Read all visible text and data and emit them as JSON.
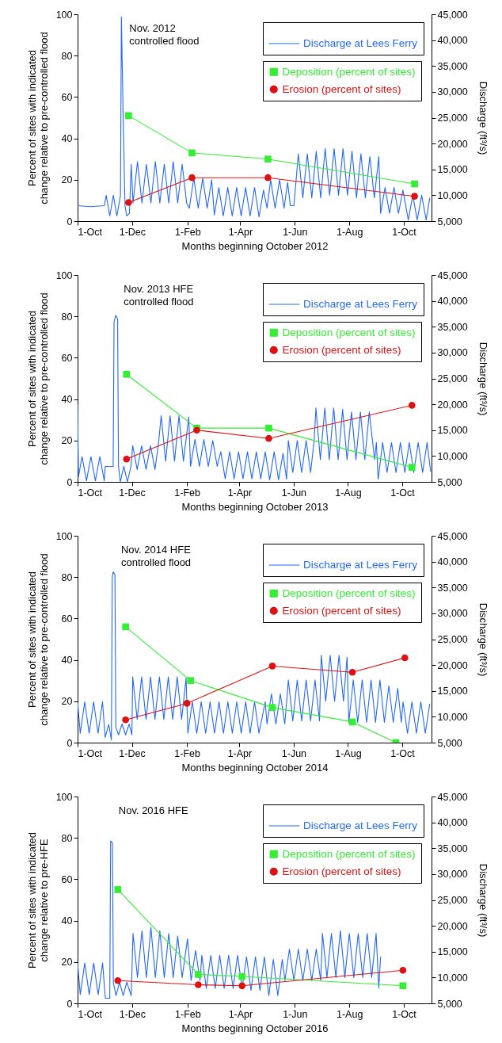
{
  "chart_data": [
    {
      "type": "line",
      "xlabel": "Months beginning October 2012",
      "ylabel": "Percent of sites with indicated\nchange relative to pre-controlled flood",
      "y2label": "Discharge (ft³/s)",
      "legend": "top right",
      "xlim": [
        "2012-10-01",
        "2013-11-01"
      ],
      "xticks": [
        {
          "value": "2012-10-01",
          "label": "1-Oct"
        },
        {
          "value": "2012-12-01",
          "label": "1-Dec"
        },
        {
          "value": "2013-02-01",
          "label": "1-Feb"
        },
        {
          "value": "2013-04-01",
          "label": "1-Apr"
        },
        {
          "value": "2013-06-01",
          "label": "1-Jun"
        },
        {
          "value": "2013-08-01",
          "label": "1-Aug"
        },
        {
          "value": "2013-10-01",
          "label": "1-Oct"
        }
      ],
      "ylim": [
        0,
        100
      ],
      "yticks": [
        0,
        20,
        40,
        60,
        80,
        100
      ],
      "y2lim": [
        5000,
        45000
      ],
      "y2ticks": [
        {
          "value": 5000,
          "label": "5,000"
        },
        {
          "value": 10000,
          "label": "10,000"
        },
        {
          "value": 15000,
          "label": "15,000"
        },
        {
          "value": 20000,
          "label": "20,000"
        },
        {
          "value": 25000,
          "label": "25,000"
        },
        {
          "value": 30000,
          "label": "30,000"
        },
        {
          "value": 35000,
          "label": "35,000"
        },
        {
          "value": 40000,
          "label": "40,000"
        },
        {
          "value": 45000,
          "label": "45,000"
        }
      ],
      "annotations": [
        "Nov. 2012\ncontrolled flood"
      ],
      "line_style": "solid",
      "series": [
        {
          "name": "Discharge at Lees Ferry",
          "type": "line",
          "axis": "y2",
          "color": "#2469f5",
          "x": [
            "2012-10-01",
            "2012-10-15",
            "2012-10-31",
            "2012-11-02",
            "2012-11-06",
            "2012-11-10",
            "2012-11-14",
            "2012-11-18",
            "2012-11-19",
            "2012-11-21",
            "2012-11-23",
            "2012-11-25",
            "2012-11-28",
            "2012-11-30",
            "2012-12-02",
            "2012-12-07",
            "2012-12-12",
            "2012-12-17",
            "2012-12-22",
            "2012-12-27",
            "2013-01-01",
            "2013-01-06",
            "2013-01-11",
            "2013-01-16",
            "2013-01-21",
            "2013-01-26",
            "2013-01-31",
            "2013-02-03",
            "2013-02-08",
            "2013-02-13",
            "2013-02-18",
            "2013-02-23",
            "2013-02-28",
            "2013-03-03",
            "2013-03-08",
            "2013-03-13",
            "2013-03-18",
            "2013-03-23",
            "2013-03-28",
            "2013-04-02",
            "2013-04-07",
            "2013-04-12",
            "2013-04-17",
            "2013-04-22",
            "2013-04-27",
            "2013-05-01",
            "2013-05-05",
            "2013-05-10",
            "2013-05-15",
            "2013-05-20",
            "2013-05-24",
            "2013-05-27",
            "2013-05-31",
            "2013-06-05",
            "2013-06-10",
            "2013-06-15",
            "2013-06-20",
            "2013-06-25",
            "2013-06-30",
            "2013-07-05",
            "2013-07-10",
            "2013-07-15",
            "2013-07-20",
            "2013-07-25",
            "2013-07-30",
            "2013-08-04",
            "2013-08-09",
            "2013-08-14",
            "2013-08-19",
            "2013-08-24",
            "2013-08-29",
            "2013-09-03",
            "2013-09-05",
            "2013-09-10",
            "2013-09-15",
            "2013-09-20",
            "2013-09-25",
            "2013-09-30",
            "2013-10-06",
            "2013-10-11",
            "2013-10-16",
            "2013-10-21",
            "2013-10-26",
            "2013-10-30"
          ],
          "values": [
            8000,
            7800,
            8000,
            10000,
            6000,
            10000,
            6000,
            10000,
            44500,
            25000,
            8000,
            6000,
            6500,
            16000,
            8500,
            16500,
            8500,
            16000,
            8500,
            16500,
            8500,
            16000,
            8500,
            16500,
            8500,
            16000,
            8500,
            7500,
            13300,
            7500,
            13300,
            7500,
            13000,
            6200,
            11500,
            6000,
            11500,
            6000,
            11500,
            6000,
            11500,
            6000,
            11500,
            5800,
            11000,
            7500,
            13000,
            7500,
            13000,
            7500,
            12500,
            8000,
            8000,
            18000,
            9500,
            18000,
            9500,
            18500,
            9500,
            19000,
            10000,
            19000,
            10000,
            19000,
            10000,
            18500,
            9500,
            18000,
            9500,
            17500,
            9500,
            17500,
            6500,
            11500,
            6500,
            11500,
            6500,
            11000,
            5200,
            10000,
            5200,
            10000,
            5200,
            9500
          ]
        },
        {
          "name": "Deposition (percent of sites)",
          "type": "line",
          "marker": "square",
          "color": "#33ee33",
          "x": [
            "2012-11-27",
            "2013-02-06",
            "2013-05-02",
            "2013-10-13"
          ],
          "values": [
            51,
            33,
            30,
            18
          ]
        },
        {
          "name": "Erosion (percent of sites)",
          "type": "line",
          "marker": "circle",
          "color": "#dd1111",
          "x": [
            "2012-11-27",
            "2013-02-06",
            "2013-05-02",
            "2013-10-13"
          ],
          "values": [
            9,
            21,
            21,
            12
          ]
        }
      ]
    },
    {
      "type": "line",
      "xlabel": "Months beginning October 2013",
      "ylabel": "Percent of sites with indicated\nchange relative to pre-controlled flood",
      "y2label": "Discharge (ft³/s)",
      "legend": "top right",
      "xlim": [
        "2013-10-01",
        "2014-11-03"
      ],
      "xticks": [
        {
          "value": "2013-10-01",
          "label": "1-Oct"
        },
        {
          "value": "2013-12-01",
          "label": "1-Dec"
        },
        {
          "value": "2014-02-01",
          "label": "1-Feb"
        },
        {
          "value": "2014-04-01",
          "label": "1-Apr"
        },
        {
          "value": "2014-06-01",
          "label": "1-Jun"
        },
        {
          "value": "2014-08-01",
          "label": "1-Aug"
        },
        {
          "value": "2014-10-01",
          "label": "1-Oct"
        }
      ],
      "ylim": [
        0,
        100
      ],
      "yticks": [
        0,
        20,
        40,
        60,
        80,
        100
      ],
      "y2lim": [
        5000,
        45000
      ],
      "y2ticks": [
        {
          "value": 5000,
          "label": "5,000"
        },
        {
          "value": 10000,
          "label": "10,000"
        },
        {
          "value": 15000,
          "label": "15,000"
        },
        {
          "value": 20000,
          "label": "20,000"
        },
        {
          "value": 25000,
          "label": "25,000"
        },
        {
          "value": 30000,
          "label": "30,000"
        },
        {
          "value": 35000,
          "label": "35,000"
        },
        {
          "value": 40000,
          "label": "40,000"
        },
        {
          "value": 45000,
          "label": "45,000"
        }
      ],
      "annotations": [
        "Nov. 2013 HFE\ncontrolled flood"
      ],
      "line_style": "solid",
      "series": [
        {
          "name": "Discharge at Lees Ferry",
          "type": "line",
          "axis": "y2",
          "color": "#2469f5",
          "x": [
            "2013-10-01",
            "2013-10-02",
            "2013-10-06",
            "2013-10-11",
            "2013-10-16",
            "2013-10-21",
            "2013-10-26",
            "2013-10-31",
            "2013-11-01",
            "2013-11-10",
            "2013-11-11",
            "2013-11-13",
            "2013-11-15",
            "2013-11-16",
            "2013-11-18",
            "2013-11-22",
            "2013-11-26",
            "2013-11-30",
            "2013-12-02",
            "2013-12-07",
            "2013-12-12",
            "2013-12-17",
            "2013-12-22",
            "2013-12-27",
            "2013-12-31",
            "2014-01-03",
            "2014-01-08",
            "2014-01-13",
            "2014-01-18",
            "2014-01-23",
            "2014-01-28",
            "2014-02-03",
            "2014-02-05",
            "2014-02-10",
            "2014-02-15",
            "2014-02-20",
            "2014-02-25",
            "2014-03-02",
            "2014-03-07",
            "2014-03-11",
            "2014-03-16",
            "2014-03-21",
            "2014-03-26",
            "2014-03-31",
            "2014-04-05",
            "2014-04-10",
            "2014-04-15",
            "2014-04-20",
            "2014-04-25",
            "2014-04-30",
            "2014-05-05",
            "2014-05-10",
            "2014-05-15",
            "2014-05-20",
            "2014-05-24",
            "2014-05-26",
            "2014-05-31",
            "2014-06-05",
            "2014-06-10",
            "2014-06-15",
            "2014-06-20",
            "2014-06-24",
            "2014-06-26",
            "2014-07-01",
            "2014-07-06",
            "2014-07-11",
            "2014-07-16",
            "2014-07-21",
            "2014-07-26",
            "2014-07-31",
            "2014-08-05",
            "2014-08-10",
            "2014-08-15",
            "2014-08-20",
            "2014-08-25",
            "2014-08-31",
            "2014-09-02",
            "2014-09-04",
            "2014-09-09",
            "2014-09-14",
            "2014-09-19",
            "2014-09-24",
            "2014-09-29",
            "2014-10-04",
            "2014-10-09",
            "2014-10-14",
            "2014-10-19",
            "2014-10-24",
            "2014-10-29",
            "2014-11-02"
          ],
          "values": [
            20000,
            6000,
            9900,
            5200,
            9900,
            5200,
            9900,
            5200,
            8000,
            8000,
            36000,
            37200,
            36500,
            8000,
            5000,
            8000,
            5000,
            8000,
            12000,
            7400,
            12000,
            7400,
            12000,
            7400,
            12500,
            17800,
            9000,
            17800,
            9000,
            17800,
            9000,
            17500,
            8000,
            13200,
            8000,
            13200,
            8000,
            13000,
            8000,
            10800,
            5600,
            10800,
            5600,
            10800,
            5600,
            10800,
            5600,
            10800,
            5600,
            10800,
            5400,
            10800,
            5400,
            10500,
            5500,
            13000,
            6800,
            13000,
            6800,
            13000,
            6800,
            13000,
            19300,
            9300,
            19300,
            9300,
            19300,
            9300,
            19000,
            9300,
            18500,
            9300,
            18500,
            9300,
            18500,
            9300,
            12600,
            5500,
            12600,
            6800,
            12600,
            6800,
            12600,
            6800,
            12600,
            6800,
            12600,
            6800,
            12600,
            7000
          ]
        },
        {
          "name": "Deposition (percent of sites)",
          "type": "line",
          "marker": "square",
          "color": "#33ee33",
          "x": [
            "2013-11-25",
            "2014-02-12",
            "2014-05-04",
            "2014-10-12"
          ],
          "values": [
            52,
            26,
            26,
            7
          ]
        },
        {
          "name": "Erosion (percent of sites)",
          "type": "line",
          "marker": "circle",
          "color": "#dd1111",
          "x": [
            "2013-11-25",
            "2014-02-12",
            "2014-05-04",
            "2014-10-12"
          ],
          "values": [
            11,
            25,
            21,
            37
          ]
        }
      ]
    },
    {
      "type": "line",
      "xlabel": "Months beginning October 2014",
      "ylabel": "Percent of sites with indicated\nchange relative to pre-controlled flood",
      "y2label": "Discharge (ft³/s)",
      "legend": "top right",
      "xlim": [
        "2014-10-01",
        "2015-11-03"
      ],
      "xticks": [
        {
          "value": "2014-10-01",
          "label": "1-Oct"
        },
        {
          "value": "2014-12-01",
          "label": "1-Dec"
        },
        {
          "value": "2015-02-01",
          "label": "1-Feb"
        },
        {
          "value": "2015-04-01",
          "label": "1-Apr"
        },
        {
          "value": "2015-06-01",
          "label": "1-Jun"
        },
        {
          "value": "2015-08-01",
          "label": "1-Aug"
        },
        {
          "value": "2015-10-01",
          "label": "1-Oct"
        }
      ],
      "ylim": [
        0,
        100
      ],
      "yticks": [
        0,
        20,
        40,
        60,
        80,
        100
      ],
      "y2lim": [
        5000,
        45000
      ],
      "y2ticks": [
        {
          "value": 5000,
          "label": "5,000"
        },
        {
          "value": 10000,
          "label": "10,000"
        },
        {
          "value": 15000,
          "label": "15,000"
        },
        {
          "value": 20000,
          "label": "20,000"
        },
        {
          "value": 25000,
          "label": "25,000"
        },
        {
          "value": 30000,
          "label": "30,000"
        },
        {
          "value": 35000,
          "label": "35,000"
        },
        {
          "value": 40000,
          "label": "40,000"
        },
        {
          "value": 45000,
          "label": "45,000"
        }
      ],
      "annotations": [
        "Nov. 2014 HFE\ncontrolled flood"
      ],
      "line_style": "solid",
      "series": [
        {
          "name": "Discharge at Lees Ferry",
          "type": "line",
          "axis": "y2",
          "color": "#2469f5",
          "x": [
            "2014-10-01",
            "2014-10-04",
            "2014-10-09",
            "2014-10-14",
            "2014-10-19",
            "2014-10-24",
            "2014-10-29",
            "2014-11-01",
            "2014-11-05",
            "2014-11-08",
            "2014-11-09",
            "2014-11-10",
            "2014-11-12",
            "2014-11-13",
            "2014-11-16",
            "2014-11-20",
            "2014-11-24",
            "2014-11-28",
            "2014-12-01",
            "2014-12-02",
            "2014-12-07",
            "2014-12-12",
            "2014-12-17",
            "2014-12-22",
            "2014-12-27",
            "2015-01-01",
            "2015-01-06",
            "2015-01-11",
            "2015-01-16",
            "2015-01-21",
            "2015-01-26",
            "2015-01-31",
            "2015-02-02",
            "2015-02-07",
            "2015-02-12",
            "2015-02-17",
            "2015-02-22",
            "2015-02-27",
            "2015-03-04",
            "2015-03-09",
            "2015-03-14",
            "2015-03-19",
            "2015-03-24",
            "2015-03-29",
            "2015-04-03",
            "2015-04-08",
            "2015-04-13",
            "2015-04-18",
            "2015-04-23",
            "2015-04-30",
            "2015-05-02",
            "2015-05-07",
            "2015-05-12",
            "2015-05-17",
            "2015-05-22",
            "2015-05-26",
            "2015-05-31",
            "2015-06-05",
            "2015-06-10",
            "2015-06-15",
            "2015-06-20",
            "2015-06-25",
            "2015-06-30",
            "2015-07-02",
            "2015-07-07",
            "2015-07-12",
            "2015-07-17",
            "2015-07-22",
            "2015-07-27",
            "2015-07-31",
            "2015-08-02",
            "2015-08-07",
            "2015-08-12",
            "2015-08-17",
            "2015-08-22",
            "2015-08-27",
            "2015-09-01",
            "2015-09-06",
            "2015-09-11",
            "2015-09-16",
            "2015-09-21",
            "2015-09-26",
            "2015-09-30",
            "2015-10-02",
            "2015-10-07",
            "2015-10-12",
            "2015-10-17",
            "2015-10-22",
            "2015-10-27",
            "2015-11-01"
          ],
          "values": [
            12900,
            6800,
            12900,
            6800,
            12900,
            6800,
            12900,
            6000,
            8500,
            5500,
            37000,
            38000,
            37500,
            8000,
            6500,
            8600,
            6500,
            8600,
            6500,
            17700,
            9500,
            17700,
            9500,
            17700,
            9500,
            17700,
            9500,
            17700,
            9500,
            17700,
            9500,
            17500,
            6800,
            12900,
            6800,
            12900,
            6800,
            12900,
            6800,
            12900,
            6800,
            12900,
            6800,
            12900,
            6800,
            12900,
            6800,
            12900,
            6800,
            12900,
            8600,
            14400,
            8600,
            14400,
            8600,
            17100,
            9200,
            17100,
            9200,
            17100,
            9200,
            17100,
            9200,
            21900,
            13000,
            21900,
            13000,
            21900,
            13000,
            21500,
            8900,
            17100,
            8900,
            17100,
            8900,
            17100,
            8900,
            17100,
            8900,
            16000,
            8900,
            15500,
            8900,
            12900,
            6800,
            12900,
            6800,
            12900,
            6800,
            12500
          ]
        },
        {
          "name": "Deposition (percent of sites)",
          "type": "line",
          "marker": "square",
          "color": "#33ee33",
          "x": [
            "2014-11-24",
            "2015-02-05",
            "2015-05-08",
            "2015-08-06",
            "2015-09-24"
          ],
          "values": [
            56,
            30,
            17,
            10,
            0
          ]
        },
        {
          "name": "Erosion (percent of sites)",
          "type": "line",
          "marker": "circle",
          "color": "#dd1111",
          "x": [
            "2014-11-24",
            "2015-02-01",
            "2015-05-08",
            "2015-08-06",
            "2015-10-04"
          ],
          "values": [
            11,
            19,
            37,
            34,
            41
          ]
        }
      ]
    },
    {
      "type": "line",
      "xlabel": "Months beginning October 2016",
      "ylabel": "Percent of sites with indicated\nchange relative to pre-HFE",
      "y2label": "Discharge (ft³/s)",
      "legend": "top right",
      "xlim": [
        "2016-10-01",
        "2017-11-01"
      ],
      "xticks": [
        {
          "value": "2016-10-01",
          "label": "1-Oct"
        },
        {
          "value": "2016-12-01",
          "label": "1-Dec"
        },
        {
          "value": "2017-02-01",
          "label": "1-Feb"
        },
        {
          "value": "2017-04-01",
          "label": "1-Apr"
        },
        {
          "value": "2017-06-01",
          "label": "1-Jun"
        },
        {
          "value": "2017-08-01",
          "label": "1-Aug"
        },
        {
          "value": "2017-10-01",
          "label": "1-Oct"
        }
      ],
      "ylim": [
        0,
        100
      ],
      "yticks": [
        0,
        20,
        40,
        60,
        80,
        100
      ],
      "y2lim": [
        5000,
        45000
      ],
      "y2ticks": [
        {
          "value": 5000,
          "label": "5,000"
        },
        {
          "value": 10000,
          "label": "10,000"
        },
        {
          "value": 15000,
          "label": "15,000"
        },
        {
          "value": 20000,
          "label": "20,000"
        },
        {
          "value": 25000,
          "label": "25,000"
        },
        {
          "value": 30000,
          "label": "30,000"
        },
        {
          "value": 35000,
          "label": "35,000"
        },
        {
          "value": 40000,
          "label": "40,000"
        },
        {
          "value": 45000,
          "label": "45,000"
        }
      ],
      "annotations": [
        "Nov. 2016 HFE"
      ],
      "line_style": "solid",
      "series": [
        {
          "name": "Discharge at Lees Ferry",
          "type": "line",
          "axis": "y2",
          "color": "#2469f5",
          "x": [
            "2016-10-01",
            "2016-10-04",
            "2016-10-09",
            "2016-10-14",
            "2016-10-19",
            "2016-10-24",
            "2016-10-29",
            "2016-11-01",
            "2016-11-06",
            "2016-11-07",
            "2016-11-09",
            "2016-11-10",
            "2016-11-13",
            "2016-11-17",
            "2016-11-21",
            "2016-11-25",
            "2016-11-30",
            "2016-12-02",
            "2016-12-07",
            "2016-12-12",
            "2016-12-17",
            "2016-12-22",
            "2016-12-27",
            "2017-01-01",
            "2017-01-06",
            "2017-01-11",
            "2017-01-16",
            "2017-01-21",
            "2017-01-26",
            "2017-02-01",
            "2017-02-05",
            "2017-02-10",
            "2017-02-15",
            "2017-02-17",
            "2017-02-22",
            "2017-02-27",
            "2017-03-04",
            "2017-03-09",
            "2017-03-14",
            "2017-03-19",
            "2017-03-24",
            "2017-03-29",
            "2017-04-03",
            "2017-04-08",
            "2017-04-13",
            "2017-04-18",
            "2017-04-23",
            "2017-04-28",
            "2017-05-03",
            "2017-05-08",
            "2017-05-13",
            "2017-05-18",
            "2017-05-21",
            "2017-05-26",
            "2017-05-31",
            "2017-06-05",
            "2017-06-10",
            "2017-06-15",
            "2017-06-20",
            "2017-06-25",
            "2017-06-30",
            "2017-07-02",
            "2017-07-07",
            "2017-07-12",
            "2017-07-17",
            "2017-07-22",
            "2017-07-27",
            "2017-08-01",
            "2017-08-06",
            "2017-08-11",
            "2017-08-16",
            "2017-08-21",
            "2017-08-26",
            "2017-08-31",
            "2017-09-03",
            "2017-09-05"
          ],
          "values": [
            12800,
            6700,
            12800,
            6700,
            12800,
            6700,
            12800,
            6000,
            6000,
            36400,
            36000,
            9000,
            6500,
            9100,
            6500,
            9100,
            6500,
            18500,
            10000,
            19000,
            10000,
            19700,
            10000,
            19000,
            10000,
            18500,
            10000,
            18000,
            10000,
            17500,
            9400,
            15200,
            9400,
            14300,
            7900,
            14300,
            7900,
            14300,
            7900,
            14300,
            7900,
            14300,
            7900,
            14000,
            7500,
            14000,
            7500,
            14000,
            6500,
            13500,
            6500,
            13500,
            9400,
            15500,
            9400,
            15500,
            9400,
            15500,
            9400,
            15500,
            9400,
            18500,
            10000,
            18500,
            10000,
            19000,
            10000,
            18500,
            10000,
            18500,
            10000,
            18500,
            10000,
            18500,
            8000,
            14000
          ]
        },
        {
          "name": "Deposition (percent of sites)",
          "type": "line",
          "marker": "square",
          "color": "#33ee33",
          "x": [
            "2016-11-15",
            "2017-02-13",
            "2017-04-03",
            "2017-09-30"
          ],
          "values": [
            55,
            14,
            13,
            8.5
          ]
        },
        {
          "name": "Erosion (percent of sites)",
          "type": "line",
          "marker": "circle",
          "color": "#dd1111",
          "x": [
            "2016-11-15",
            "2017-02-13",
            "2017-04-03",
            "2017-09-30"
          ],
          "values": [
            11,
            9,
            8.5,
            16
          ]
        }
      ]
    }
  ]
}
